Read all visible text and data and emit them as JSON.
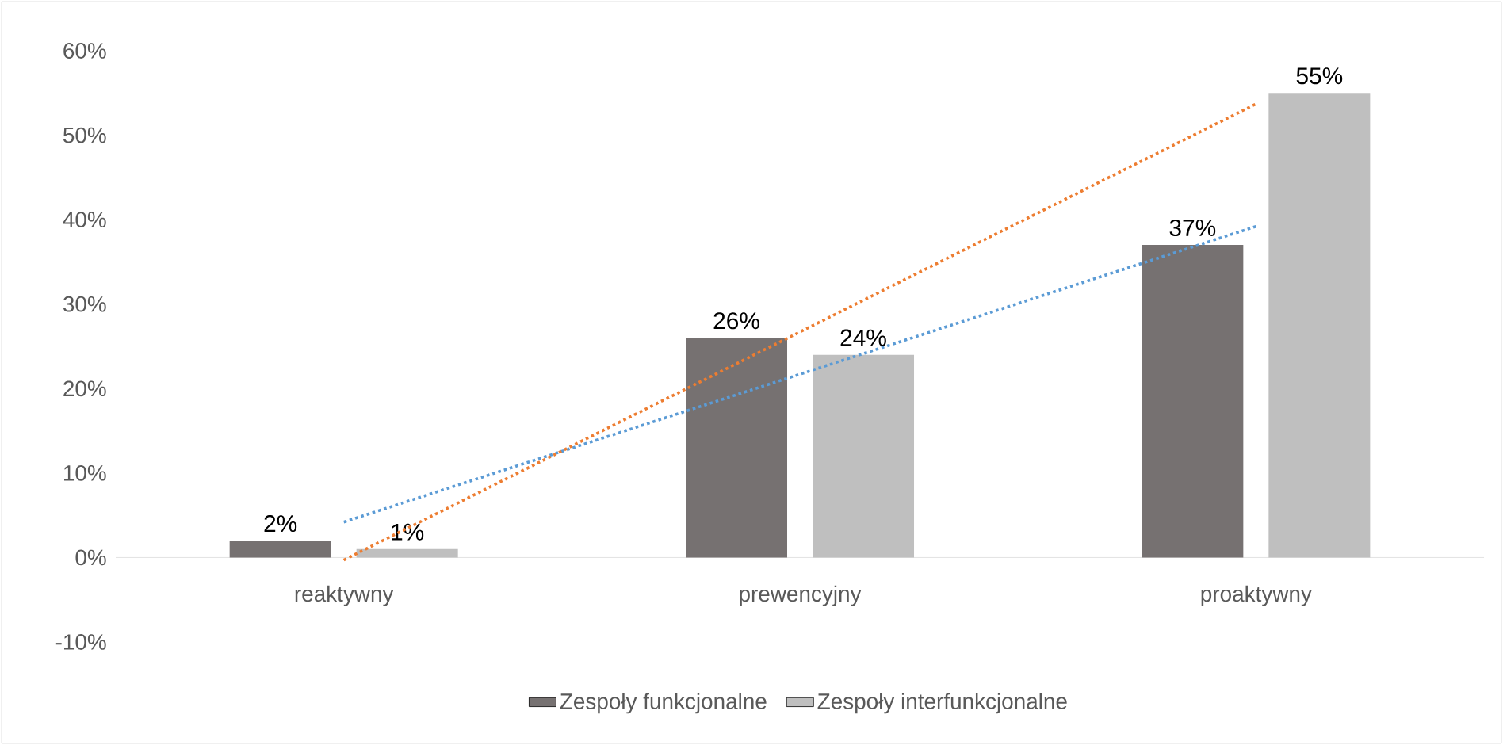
{
  "chart_data": {
    "type": "bar",
    "categories": [
      "reaktywny",
      "prewencyjny",
      "proaktywny"
    ],
    "series": [
      {
        "name": "Zespoły funkcjonalne",
        "color": "#767171",
        "values": [
          2,
          26,
          37
        ],
        "value_labels": [
          "2%",
          "26%",
          "37%"
        ]
      },
      {
        "name": "Zespoły interfunkcjonalne",
        "color": "#bfbfbf",
        "values": [
          1,
          24,
          55
        ],
        "value_labels": [
          "1%",
          "24%",
          "55%"
        ]
      },
      {
        "type": "line",
        "color": "#5b9bd5",
        "line_style": "dotted",
        "x": [
          "reaktywny",
          "proaktywny"
        ],
        "values": [
          4.2,
          39.2
        ]
      },
      {
        "type": "line",
        "color": "#ed7d31",
        "line_style": "dotted",
        "x": [
          "reaktywny",
          "proaktywny"
        ],
        "values": [
          -0.3,
          53.7
        ]
      }
    ],
    "ylim": [
      -10,
      60
    ],
    "yticks": [
      {
        "value": -10,
        "label": "-10%"
      },
      {
        "value": 0,
        "label": "0%"
      },
      {
        "value": 10,
        "label": "10%"
      },
      {
        "value": 20,
        "label": "20%"
      },
      {
        "value": 30,
        "label": "30%"
      },
      {
        "value": 40,
        "label": "40%"
      },
      {
        "value": 50,
        "label": "50%"
      },
      {
        "value": 60,
        "label": "60%"
      }
    ],
    "legend": "bottom",
    "grid": false
  }
}
